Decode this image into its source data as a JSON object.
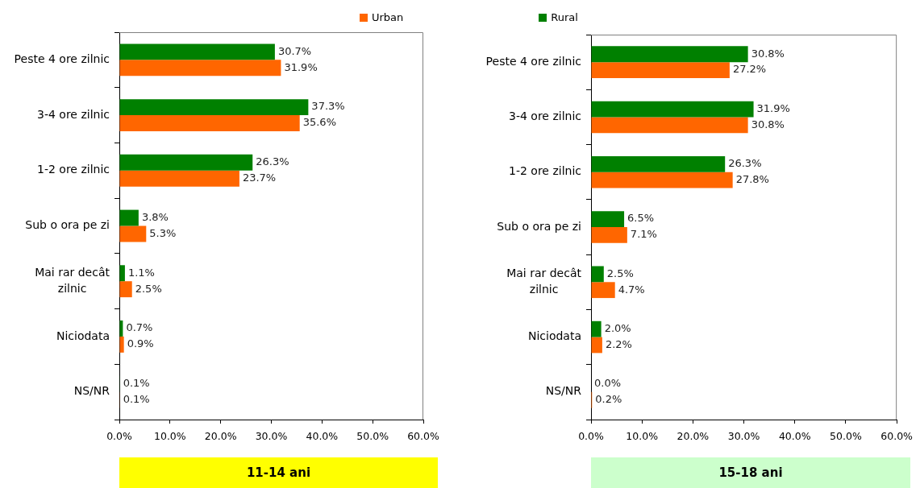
{
  "chart_data": [
    {
      "type": "bar",
      "orientation": "horizontal",
      "title": "11-14 ani",
      "legend": "top",
      "categories": [
        "Peste 4 ore zilnic",
        "3-4 ore zilnic",
        "1-2 ore zilnic",
        "Sub o ora pe zi",
        "Mai rar decât zilnic",
        "Niciodata",
        "NS/NR"
      ],
      "series": [
        {
          "name": "Rural",
          "color": "#008000",
          "values": [
            30.7,
            37.3,
            26.3,
            3.8,
            1.1,
            0.7,
            0.1
          ],
          "value_labels": [
            "30.7%",
            "37.3%",
            "26.3%",
            "3.8%",
            "1.1%",
            "0.7%",
            "0.1%"
          ]
        },
        {
          "name": "Urban",
          "color": "#ff6600",
          "values": [
            31.9,
            35.6,
            23.7,
            5.3,
            2.5,
            0.9,
            0.1
          ],
          "value_labels": [
            "31.9%",
            "35.6%",
            "23.7%",
            "5.3%",
            "2.5%",
            "0.9%",
            "0.1%"
          ]
        }
      ],
      "xlim": [
        0,
        60
      ],
      "xticks": [
        {
          "value": 0,
          "label": "0.0%"
        },
        {
          "value": 10,
          "label": "10.0%"
        },
        {
          "value": 20,
          "label": "20.0%"
        },
        {
          "value": 30,
          "label": "30.0%"
        },
        {
          "value": 40,
          "label": "40.0%"
        },
        {
          "value": 50,
          "label": "50.0%"
        },
        {
          "value": 60,
          "label": "60.0%"
        }
      ]
    },
    {
      "type": "bar",
      "orientation": "horizontal",
      "title": "15-18 ani",
      "categories": [
        "Peste 4 ore zilnic",
        "3-4 ore zilnic",
        "1-2 ore zilnic",
        "Sub o ora pe zi",
        "Mai rar decât zilnic",
        "Niciodata",
        "NS/NR"
      ],
      "series": [
        {
          "color": "#008000",
          "values": [
            30.8,
            31.9,
            26.3,
            6.5,
            2.5,
            2.0,
            0.0
          ],
          "value_labels": [
            "30.8%",
            "31.9%",
            "26.3%",
            "6.5%",
            "2.5%",
            "2.0%",
            "0.0%"
          ]
        },
        {
          "color": "#ff6600",
          "values": [
            27.2,
            30.8,
            27.8,
            7.1,
            4.7,
            2.2,
            0.2
          ],
          "value_labels": [
            "27.2%",
            "30.8%",
            "27.8%",
            "7.1%",
            "4.7%",
            "2.2%",
            "0.2%"
          ]
        }
      ],
      "xlim": [
        0,
        60
      ],
      "xticks": [
        {
          "value": 0,
          "label": "0.0%"
        },
        {
          "value": 10,
          "label": "10.0%"
        },
        {
          "value": 20,
          "label": "20.0%"
        },
        {
          "value": 30,
          "label": "30.0%"
        },
        {
          "value": 40,
          "label": "40.0%"
        },
        {
          "value": 50,
          "label": "50.0%"
        },
        {
          "value": 60,
          "label": "60.0%"
        }
      ]
    }
  ]
}
